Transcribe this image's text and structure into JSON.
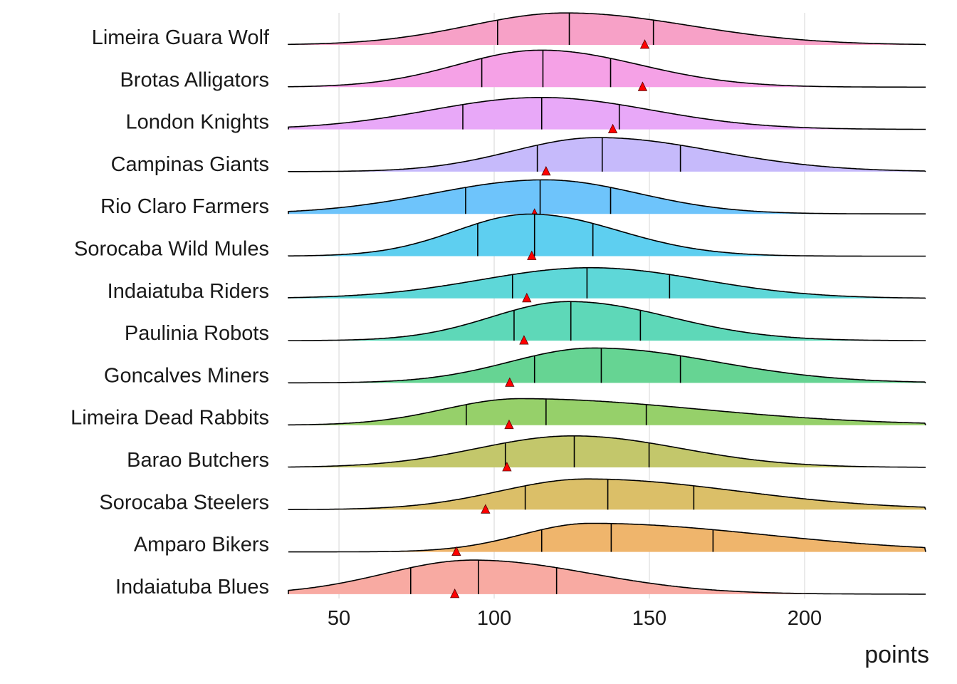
{
  "chart_data": {
    "type": "ridgeline",
    "xlabel": "points",
    "ylabel": "",
    "xlim": [
      33.7,
      239
    ],
    "xticks": [
      50,
      100,
      150,
      200
    ],
    "xtick_labels": [
      "50",
      "100",
      "150",
      "200"
    ],
    "grid": "vertical major",
    "marker_color": "#ff0000",
    "series": [
      {
        "name": "Limeira Guara Wolf",
        "quartiles": [
          101.1,
          124.2,
          151.3
        ],
        "marker": 148.5,
        "mode": 123.1,
        "peak_height": 0.76,
        "color": "#f7a1c7"
      },
      {
        "name": "Brotas Alligators",
        "quartiles": [
          96.0,
          115.7,
          137.5
        ],
        "marker": 147.8,
        "mode": 115.1,
        "peak_height": 0.88,
        "color": "#f5a1e6"
      },
      {
        "name": "London Knights",
        "quartiles": [
          89.9,
          115.3,
          140.3
        ],
        "marker": 138.2,
        "mode": 115.1,
        "peak_height": 0.76,
        "color": "#e8a8f8"
      },
      {
        "name": "Campinas Giants",
        "quartiles": [
          113.9,
          134.8,
          160.0
        ],
        "marker": 116.7,
        "mode": 133.4,
        "peak_height": 0.81,
        "color": "#c6bafb"
      },
      {
        "name": "Rio Claro Farmers",
        "quartiles": [
          90.8,
          114.8,
          137.5
        ],
        "marker": 113.0,
        "mode": 116.2,
        "peak_height": 0.81,
        "color": "#6ec4fb"
      },
      {
        "name": "Sorocaba Wild Mules",
        "quartiles": [
          94.7,
          113.0,
          131.8
        ],
        "marker": 112.1,
        "mode": 111.6,
        "peak_height": 1.0,
        "color": "#5ecff0"
      },
      {
        "name": "Indaiatuba Riders",
        "quartiles": [
          105.9,
          129.9,
          156.5
        ],
        "marker": 110.5,
        "mode": 131.1,
        "peak_height": 0.73,
        "color": "#5ed7d8"
      },
      {
        "name": "Paulinia Robots",
        "quartiles": [
          106.4,
          124.7,
          147.1
        ],
        "marker": 109.6,
        "mode": 124.2,
        "peak_height": 0.93,
        "color": "#5ed8b8"
      },
      {
        "name": "Goncalves Miners",
        "quartiles": [
          113.0,
          134.5,
          160.0
        ],
        "marker": 105.0,
        "mode": 132.2,
        "peak_height": 0.83,
        "color": "#66d493"
      },
      {
        "name": "Limeira Dead Rabbits",
        "quartiles": [
          91.0,
          116.7,
          149.0
        ],
        "marker": 104.8,
        "mode": 108.2,
        "peak_height": 0.63,
        "color": "#96d06a"
      },
      {
        "name": "Barao Butchers",
        "quartiles": [
          103.6,
          125.8,
          149.9
        ],
        "marker": 104.1,
        "mode": 125.4,
        "peak_height": 0.75,
        "color": "#c3c76b"
      },
      {
        "name": "Sorocaba Steelers",
        "quartiles": [
          110.0,
          136.6,
          164.3
        ],
        "marker": 97.2,
        "mode": 129.9,
        "peak_height": 0.73,
        "color": "#dbbf68"
      },
      {
        "name": "Amparo Bikers",
        "quartiles": [
          115.3,
          137.7,
          170.5
        ],
        "marker": 87.8,
        "mode": 131.1,
        "peak_height": 0.68,
        "color": "#efb56c"
      },
      {
        "name": "Indaiatuba Blues",
        "quartiles": [
          73.1,
          94.9,
          120.1
        ],
        "marker": 87.3,
        "mode": 93.3,
        "peak_height": 0.81,
        "color": "#f8aaa2"
      }
    ]
  }
}
